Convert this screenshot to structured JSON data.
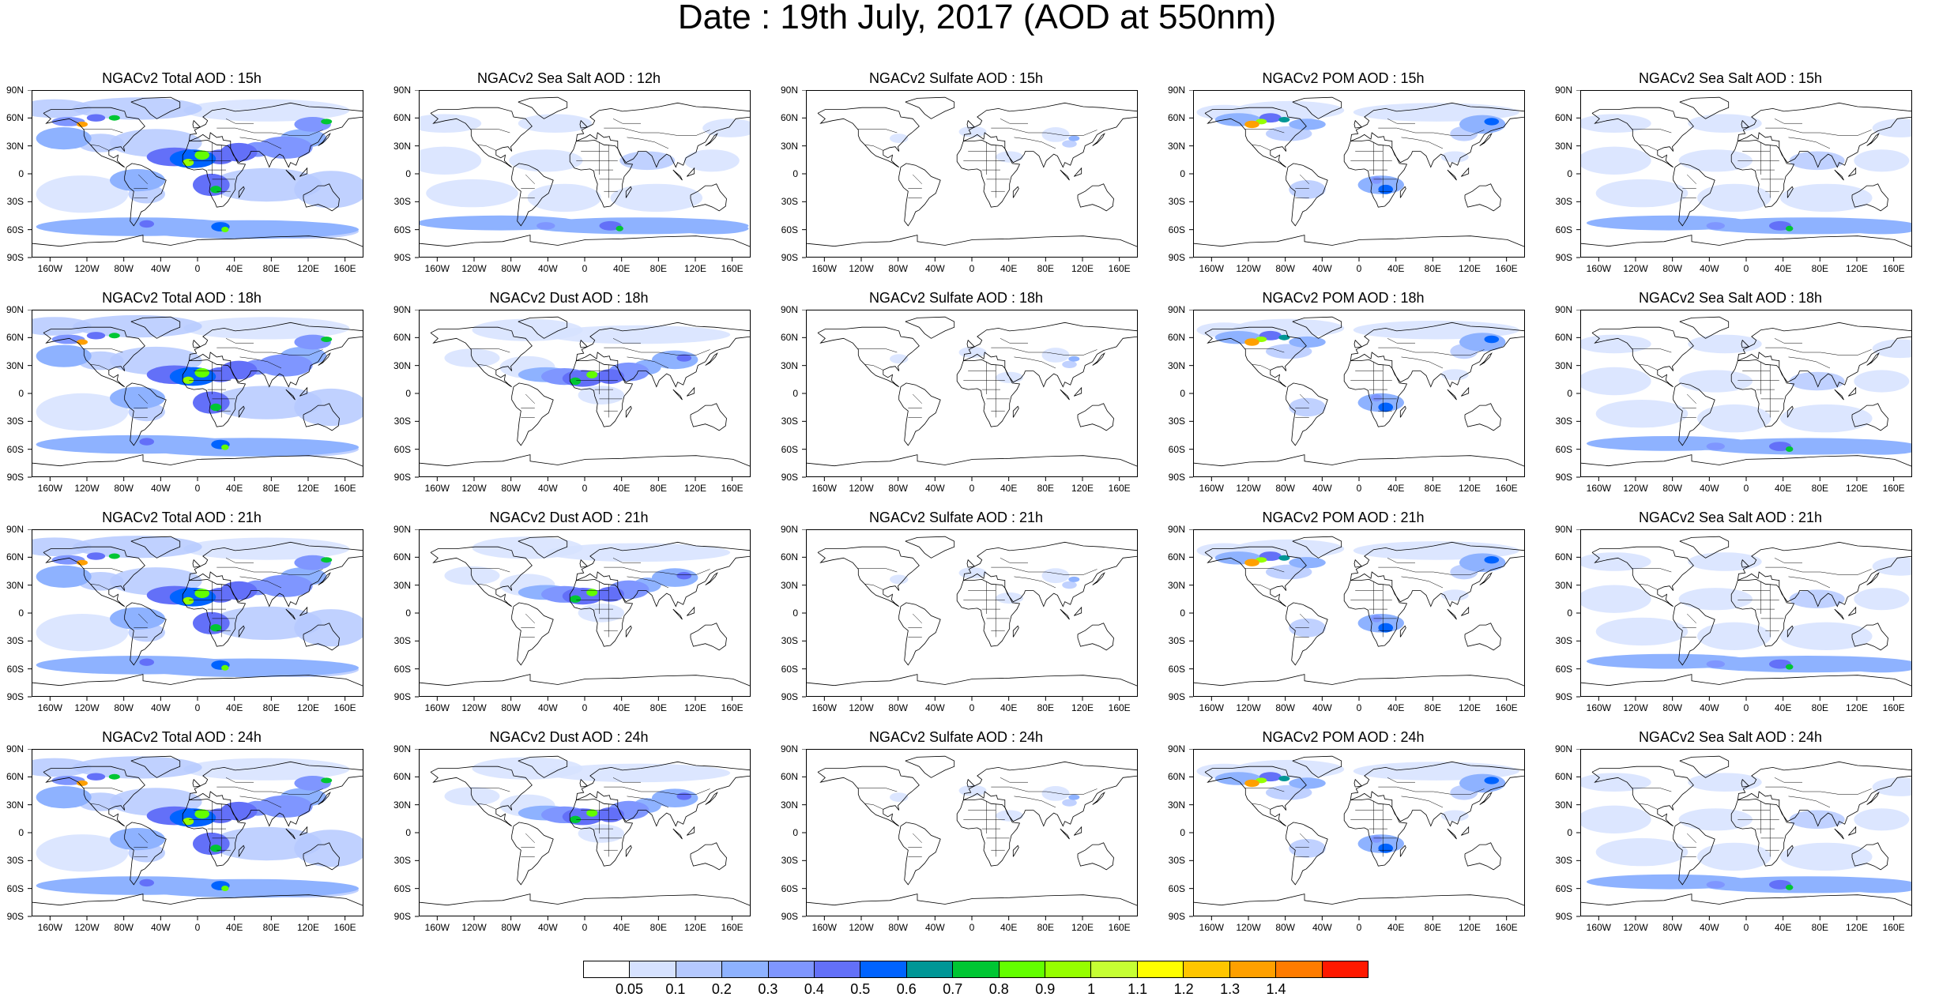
{
  "title": "Date : 19th July, 2017 (AOD at 550nm)",
  "lat_ticks": [
    "90N",
    "60N",
    "30N",
    "0",
    "30S",
    "60S",
    "90S"
  ],
  "lon_ticks": [
    "160W",
    "120W",
    "80W",
    "40W",
    "0",
    "40E",
    "80E",
    "120E",
    "160E"
  ],
  "panels": [
    {
      "title": "NGACv2 Total AOD : 15h",
      "species": "total"
    },
    {
      "title": "NGACv2 Sea Salt  AOD : 12h",
      "species": "seasalt"
    },
    {
      "title": "NGACv2 Sulfate AOD : 15h",
      "species": "sulfate"
    },
    {
      "title": "NGACv2 POM AOD : 15h",
      "species": "pom"
    },
    {
      "title": "NGACv2 Sea Salt AOD : 15h",
      "species": "seasalt"
    },
    {
      "title": "NGACv2 Total AOD : 18h",
      "species": "total"
    },
    {
      "title": "NGACv2 Dust AOD : 18h",
      "species": "dust"
    },
    {
      "title": "NGACv2 Sulfate AOD : 18h",
      "species": "sulfate"
    },
    {
      "title": "NGACv2 POM AOD : 18h",
      "species": "pom"
    },
    {
      "title": "NGACv2 Sea Salt AOD : 18h",
      "species": "seasalt"
    },
    {
      "title": "NGACv2 Total AOD : 21h",
      "species": "total"
    },
    {
      "title": "NGACv2 Dust AOD : 21h",
      "species": "dust"
    },
    {
      "title": "NGACv2 Sulfate AOD : 21h",
      "species": "sulfate"
    },
    {
      "title": "NGACv2 POM AOD : 21h",
      "species": "pom"
    },
    {
      "title": "NGACv2 Sea Salt AOD : 21h",
      "species": "seasalt"
    },
    {
      "title": "NGACv2 Total AOD : 24h",
      "species": "total"
    },
    {
      "title": "NGACv2 Dust AOD : 24h",
      "species": "dust"
    },
    {
      "title": "NGACv2 Sulfate AOD : 24h",
      "species": "sulfate"
    },
    {
      "title": "NGACv2 POM AOD : 24h",
      "species": "pom"
    },
    {
      "title": "NGACv2 Sea Salt  AOD : 24h",
      "species": "seasalt"
    }
  ],
  "colorbar": {
    "labels": [
      "0.05",
      "0.1",
      "0.2",
      "0.3",
      "0.4",
      "0.5",
      "0.6",
      "0.7",
      "0.8",
      "0.9",
      "1",
      "1.1",
      "1.2",
      "1.3",
      "1.4"
    ],
    "colors": [
      "#ffffff",
      "#d6e2ff",
      "#b5c9ff",
      "#8eb2ff",
      "#7f96ff",
      "#6370f8",
      "#0063ff",
      "#009696",
      "#00c633",
      "#63ff00",
      "#96ff00",
      "#c6ff33",
      "#ffff00",
      "#ffc600",
      "#ffa000",
      "#ff7c00",
      "#ff1900"
    ]
  }
}
